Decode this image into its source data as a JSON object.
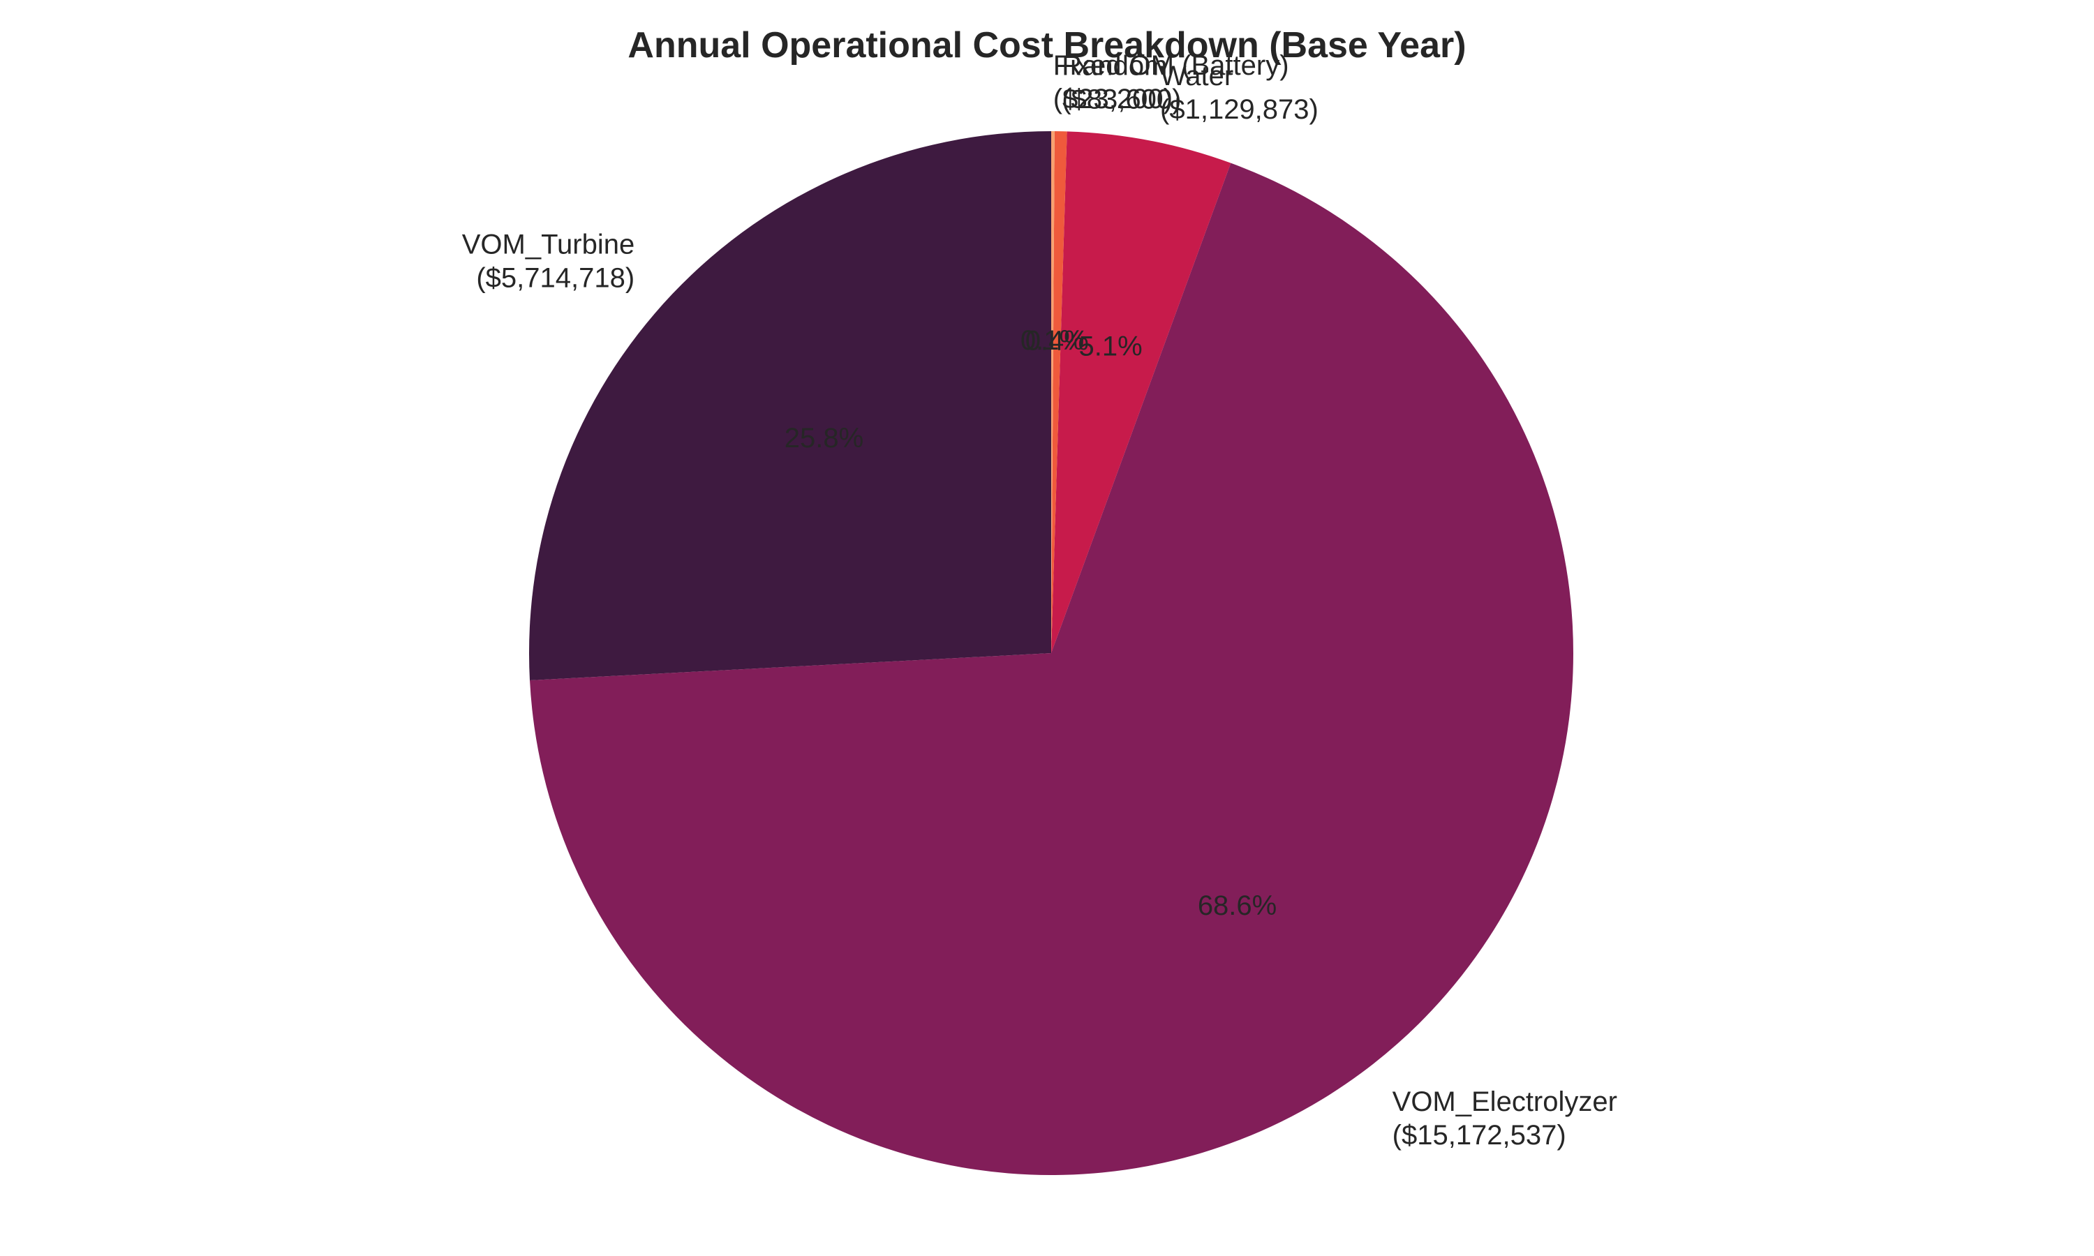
{
  "chart_data": {
    "type": "pie",
    "title": "Annual Operational Cost Breakdown (Base Year)",
    "slices": [
      {
        "label": "VOM_Turbine",
        "value_label": "($5,714,718)",
        "value": 5714718,
        "pct_label": "25.8%",
        "color": "#3e1a40"
      },
      {
        "label": "VOM_Electrolyzer",
        "value_label": "($15,172,537)",
        "value": 15172537,
        "pct_label": "68.6%",
        "color": "#821e59"
      },
      {
        "label": "Water",
        "value_label": "($1,129,873)",
        "value": 1129873,
        "pct_label": "5.1%",
        "color": "#c71b4b"
      },
      {
        "label": "Random",
        "value_label": "($83,600)",
        "value": 83600,
        "pct_label": "0.4%",
        "color": "#ef5a3c"
      },
      {
        "label": "Fixed OM (Battery)",
        "value_label": "($23,200)",
        "value": 23200,
        "pct_label": "0.1%",
        "color": "#f7a170"
      }
    ],
    "start_angle_deg": 90,
    "direction": "counterclockwise",
    "legend": "none"
  }
}
